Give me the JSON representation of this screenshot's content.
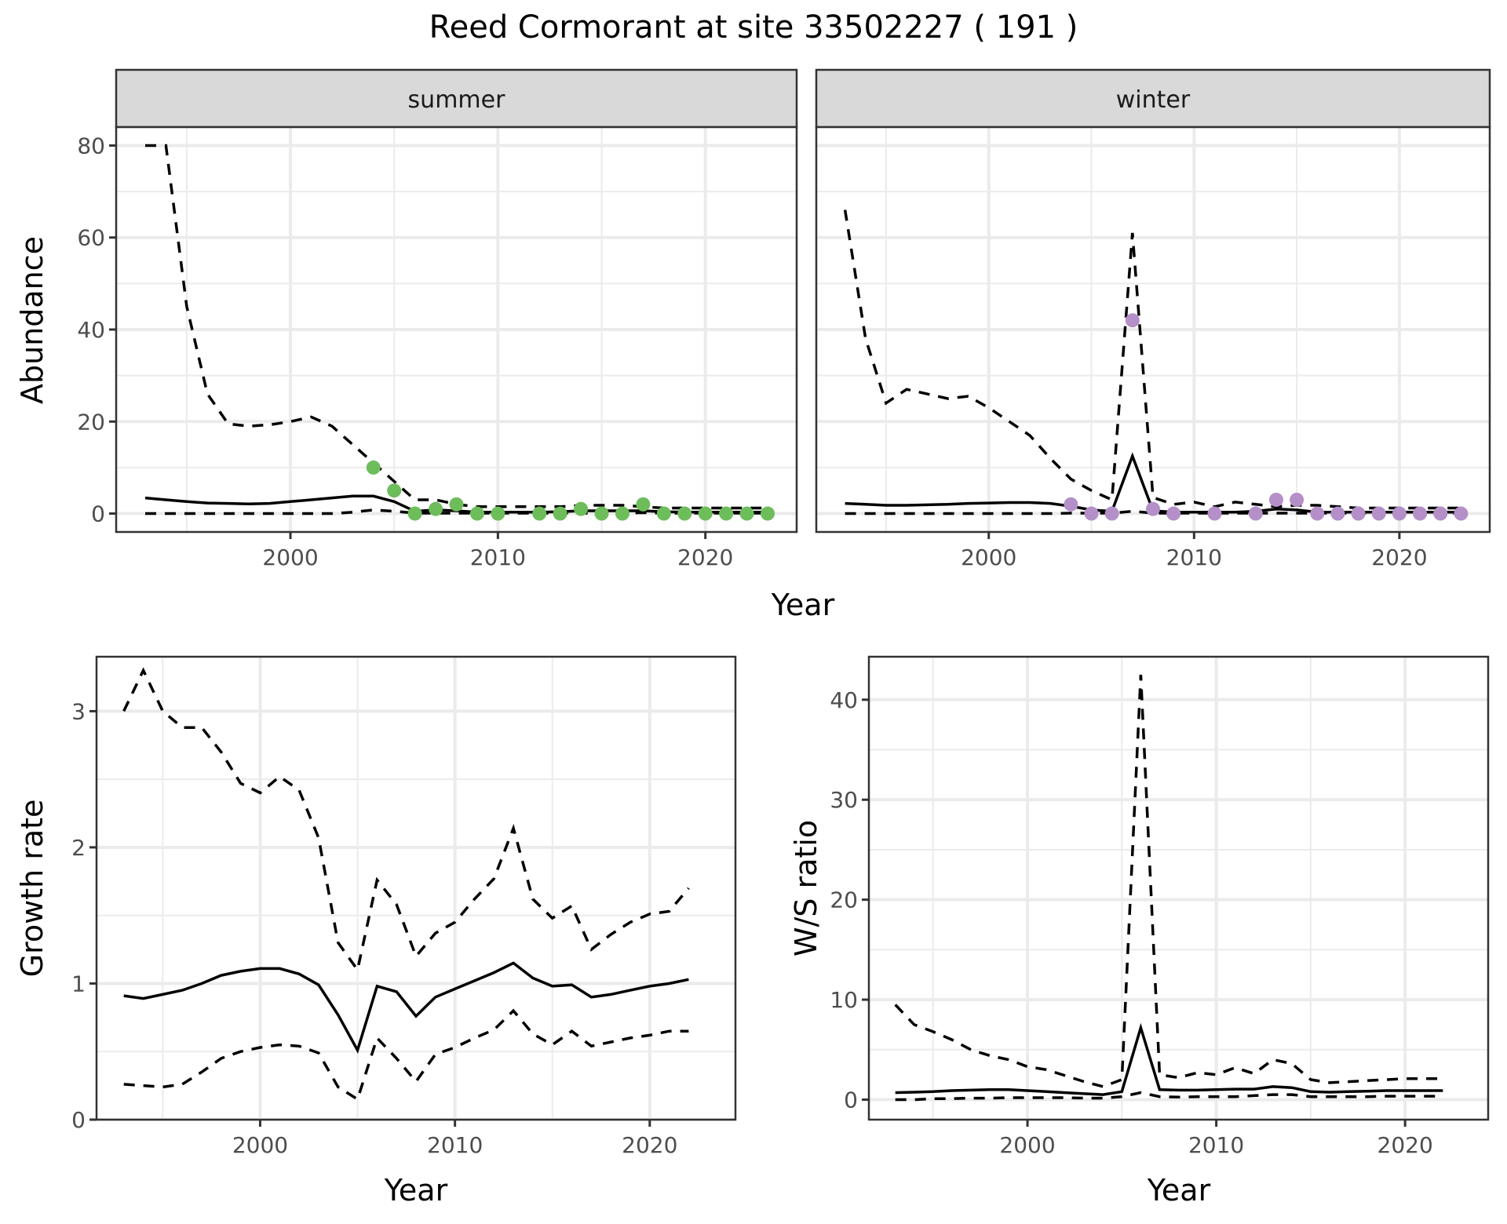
{
  "title": "Reed Cormorant at site 33502227 ( 191 )",
  "colors": {
    "summer_points": "#6dbd5b",
    "winter_points": "#b48fc8",
    "line": "#000000"
  },
  "chart_data": [
    {
      "id": "abundance",
      "type": "line",
      "facets": [
        "summer",
        "winter"
      ],
      "xlabel": "Year",
      "ylabel": "Abundance",
      "xlim": [
        1991.6,
        2024.4
      ],
      "ylim": [
        -4,
        84
      ],
      "xticks": [
        "2000",
        "2010",
        "2020"
      ],
      "yticks": [
        "0",
        "20",
        "40",
        "60",
        "80"
      ],
      "x": [
        1993,
        1994,
        1995,
        1996,
        1997,
        1998,
        1999,
        2000,
        2001,
        2002,
        2003,
        2004,
        2005,
        2006,
        2007,
        2008,
        2009,
        2010,
        2011,
        2012,
        2013,
        2014,
        2015,
        2016,
        2017,
        2018,
        2019,
        2020,
        2021,
        2022,
        2023
      ],
      "panels": {
        "summer": {
          "label": "summer",
          "series": [
            {
              "name": "upper",
              "style": "dashed",
              "values": [
                80,
                80,
                45,
                26,
                19.5,
                19,
                19.3,
                20,
                21,
                19,
                15,
                11,
                7,
                3,
                3,
                2,
                1.5,
                1.5,
                1.5,
                1.5,
                1.5,
                1.8,
                1.8,
                1.8,
                1.5,
                1.2,
                1.2,
                1.2,
                1.2,
                1.2,
                1.2
              ]
            },
            {
              "name": "mean",
              "style": "solid",
              "values": [
                3.4,
                3,
                2.6,
                2.3,
                2.2,
                2.1,
                2.2,
                2.6,
                3,
                3.4,
                3.8,
                3.8,
                2.6,
                0.5,
                0.8,
                0.6,
                0.3,
                0.3,
                0.3,
                0.3,
                0.4,
                0.6,
                0.6,
                0.6,
                0.6,
                0.4,
                0.3,
                0.3,
                0.3,
                0.3,
                0.3
              ]
            },
            {
              "name": "lower",
              "style": "dashed",
              "values": [
                0,
                0,
                0,
                0,
                0,
                0,
                0,
                0,
                0,
                0,
                0.3,
                0.8,
                0.5,
                0.1,
                0.1,
                0.1,
                0.1,
                0.1,
                0.1,
                0.1,
                0.1,
                0.1,
                0.1,
                0.1,
                0.2,
                0.1,
                0.1,
                0.1,
                0.1,
                0.1,
                0.1
              ]
            }
          ],
          "points": {
            "x": [
              2004,
              2005,
              2006,
              2007,
              2008,
              2009,
              2010,
              2012,
              2013,
              2014,
              2015,
              2016,
              2017,
              2018,
              2019,
              2020,
              2021,
              2022,
              2023
            ],
            "y": [
              10,
              5,
              0,
              1,
              2,
              0,
              0,
              0,
              0,
              1,
              0,
              0,
              2,
              0,
              0,
              0,
              0,
              0,
              0
            ]
          }
        },
        "winter": {
          "label": "winter",
          "series": [
            {
              "name": "upper",
              "style": "dashed",
              "values": [
                66,
                38,
                24,
                27,
                26,
                25,
                25.5,
                23,
                20,
                17,
                12,
                7.5,
                5,
                3,
                61,
                3.5,
                2,
                2.5,
                1.5,
                2.5,
                2,
                1.5,
                1.8,
                1.8,
                1.5,
                1.2,
                1.2,
                1.2,
                1.2,
                1.2,
                1.2
              ]
            },
            {
              "name": "mean",
              "style": "solid",
              "values": [
                2.2,
                2,
                1.8,
                1.8,
                1.9,
                2,
                2.2,
                2.3,
                2.4,
                2.4,
                2.2,
                1.6,
                0.8,
                0.5,
                12.5,
                0.6,
                0.3,
                0.3,
                0.3,
                0.3,
                0.5,
                1,
                0.8,
                0.3,
                0.3,
                0.3,
                0.3,
                0.3,
                0.3,
                0.3,
                0.3
              ]
            },
            {
              "name": "lower",
              "style": "dashed",
              "values": [
                0,
                0,
                0,
                0,
                0,
                0,
                0,
                0,
                0,
                0,
                0,
                0.1,
                0.1,
                0.1,
                0.5,
                0.1,
                0.1,
                0.1,
                0.1,
                0.1,
                0.1,
                0.1,
                0.1,
                0.1,
                0.1,
                0.1,
                0.1,
                0.1,
                0.1,
                0.1,
                0.1
              ]
            }
          ],
          "points": {
            "x": [
              2004,
              2005,
              2006,
              2007,
              2008,
              2009,
              2011,
              2013,
              2014,
              2015,
              2016,
              2017,
              2018,
              2019,
              2020,
              2021,
              2022,
              2023
            ],
            "y": [
              2,
              0,
              0,
              42,
              1,
              0,
              0,
              0,
              3,
              3,
              0,
              0,
              0,
              0,
              0,
              0,
              0,
              0
            ]
          }
        }
      }
    },
    {
      "id": "growth",
      "type": "line",
      "xlabel": "Year",
      "ylabel": "Growth rate",
      "xlim": [
        1991.6,
        2024.4
      ],
      "ylim": [
        0,
        3.4
      ],
      "xticks": [
        "2000",
        "2010",
        "2020"
      ],
      "yticks": [
        "0",
        "1",
        "2",
        "3"
      ],
      "x": [
        1993,
        1994,
        1995,
        1996,
        1997,
        1998,
        1999,
        2000,
        2001,
        2002,
        2003,
        2004,
        2005,
        2006,
        2007,
        2008,
        2009,
        2010,
        2011,
        2012,
        2013,
        2014,
        2015,
        2016,
        2017,
        2018,
        2019,
        2020,
        2021,
        2022
      ],
      "series": [
        {
          "name": "upper",
          "style": "dashed",
          "values": [
            3.0,
            3.3,
            3.0,
            2.88,
            2.88,
            2.7,
            2.47,
            2.4,
            2.52,
            2.42,
            2.07,
            1.3,
            1.1,
            1.76,
            1.58,
            1.2,
            1.37,
            1.45,
            1.62,
            1.77,
            2.14,
            1.62,
            1.48,
            1.57,
            1.25,
            1.36,
            1.45,
            1.51,
            1.53,
            1.7
          ]
        },
        {
          "name": "mean",
          "style": "solid",
          "values": [
            0.91,
            0.89,
            0.92,
            0.95,
            1.0,
            1.06,
            1.09,
            1.11,
            1.11,
            1.07,
            0.99,
            0.77,
            0.51,
            0.98,
            0.94,
            0.76,
            0.9,
            0.96,
            1.02,
            1.08,
            1.15,
            1.04,
            0.98,
            0.99,
            0.9,
            0.92,
            0.95,
            0.98,
            1.0,
            1.03
          ]
        },
        {
          "name": "lower",
          "style": "dashed",
          "values": [
            0.26,
            0.25,
            0.24,
            0.26,
            0.35,
            0.45,
            0.5,
            0.53,
            0.55,
            0.54,
            0.49,
            0.24,
            0.15,
            0.6,
            0.45,
            0.28,
            0.48,
            0.53,
            0.6,
            0.66,
            0.8,
            0.63,
            0.55,
            0.65,
            0.54,
            0.57,
            0.6,
            0.62,
            0.65,
            0.65
          ]
        }
      ]
    },
    {
      "id": "ratio",
      "type": "line",
      "xlabel": "Year",
      "ylabel": "W/S ratio",
      "xlim": [
        1991.6,
        2024.4
      ],
      "ylim": [
        -2,
        44.3
      ],
      "xticks": [
        "2000",
        "2010",
        "2020"
      ],
      "yticks": [
        "0",
        "10",
        "20",
        "30",
        "40"
      ],
      "x": [
        1993,
        1994,
        1995,
        1996,
        1997,
        1998,
        1999,
        2000,
        2001,
        2002,
        2003,
        2004,
        2005,
        2006,
        2007,
        2008,
        2009,
        2010,
        2011,
        2012,
        2013,
        2014,
        2015,
        2016,
        2017,
        2018,
        2019,
        2020,
        2021,
        2022
      ],
      "series": [
        {
          "name": "upper",
          "style": "dashed",
          "values": [
            9.5,
            7.5,
            6.8,
            6,
            5,
            4.4,
            4,
            3.3,
            3,
            2.4,
            1.8,
            1.3,
            2,
            42.5,
            2.5,
            2.2,
            2.7,
            2.5,
            3.2,
            2.6,
            4,
            3.6,
            2,
            1.7,
            1.8,
            1.9,
            2,
            2.1,
            2.1,
            2.1
          ]
        },
        {
          "name": "mean",
          "style": "solid",
          "values": [
            0.7,
            0.75,
            0.8,
            0.9,
            0.95,
            1,
            1,
            0.9,
            0.8,
            0.7,
            0.6,
            0.5,
            0.8,
            7.2,
            1,
            0.95,
            0.95,
            1,
            1.05,
            1.05,
            1.3,
            1.2,
            0.8,
            0.75,
            0.8,
            0.85,
            0.9,
            0.9,
            0.9,
            0.9
          ]
        },
        {
          "name": "lower",
          "style": "dashed",
          "values": [
            0,
            0,
            0.1,
            0.1,
            0.15,
            0.15,
            0.2,
            0.2,
            0.2,
            0.2,
            0.15,
            0.15,
            0.3,
            0.7,
            0.3,
            0.25,
            0.3,
            0.3,
            0.3,
            0.4,
            0.5,
            0.5,
            0.3,
            0.3,
            0.3,
            0.3,
            0.35,
            0.35,
            0.35,
            0.35
          ]
        }
      ]
    }
  ]
}
